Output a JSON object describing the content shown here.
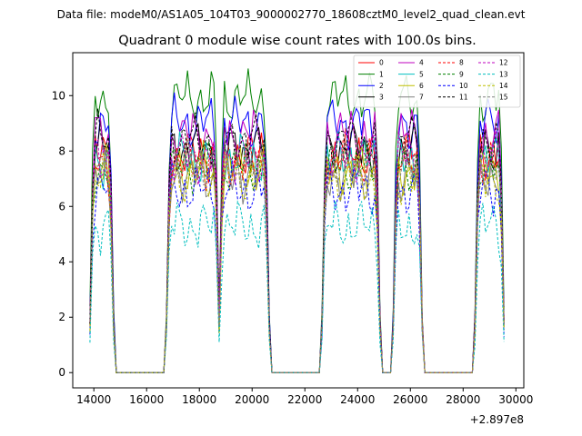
{
  "figure": {
    "suptitle": "Data file: modeM0/AS1A05_104T03_9000002770_18608cztM0_level2_quad_clean.evt",
    "title": "Quadrant 0 module wise count rates with 100.0s bins.",
    "x_offset_label": "+2.897e8"
  },
  "chart_data": {
    "type": "line",
    "title": "Quadrant 0 module wise count rates with 100.0s bins.",
    "xlabel": "",
    "ylabel": "",
    "x_offset": 289700000,
    "xlim": [
      13200,
      30300
    ],
    "ylim": [
      -0.55,
      11.55
    ],
    "x_ticks": [
      14000,
      16000,
      18000,
      20000,
      22000,
      24000,
      26000,
      28000,
      30000
    ],
    "x_tick_labels": [
      "14000",
      "16000",
      "18000",
      "20000",
      "22000",
      "24000",
      "26000",
      "28000",
      "30000"
    ],
    "y_ticks": [
      0,
      2,
      4,
      6,
      8,
      10
    ],
    "y_tick_labels": [
      "0",
      "2",
      "4",
      "6",
      "8",
      "10"
    ],
    "grid": false,
    "legend_position": "top-right",
    "legend_columns": 4,
    "bin_seconds": 100,
    "segments": [
      {
        "start": 13850,
        "end": 14750
      },
      {
        "start": 16750,
        "end": 18750
      },
      {
        "start": 18750,
        "end": 20650
      },
      {
        "start": 22600,
        "end": 24900
      },
      {
        "start": 25350,
        "end": 26450
      },
      {
        "start": 28450,
        "end": 29550
      }
    ],
    "series": [
      {
        "name": "0",
        "color": "#ff0000",
        "dash": "solid",
        "level": 7.9
      },
      {
        "name": "1",
        "color": "#008000",
        "dash": "solid",
        "level": 9.9
      },
      {
        "name": "2",
        "color": "#0000ff",
        "dash": "solid",
        "level": 9.0
      },
      {
        "name": "3",
        "color": "#000000",
        "dash": "solid",
        "level": 8.1
      },
      {
        "name": "4",
        "color": "#bf00bf",
        "dash": "solid",
        "level": 8.6
      },
      {
        "name": "5",
        "color": "#00bfbf",
        "dash": "solid",
        "level": 7.7
      },
      {
        "name": "6",
        "color": "#bfbf00",
        "dash": "solid",
        "level": 7.3
      },
      {
        "name": "7",
        "color": "#808080",
        "dash": "solid",
        "level": 7.1
      },
      {
        "name": "8",
        "color": "#ff0000",
        "dash": "dashed",
        "level": 7.6
      },
      {
        "name": "9",
        "color": "#008000",
        "dash": "dashed",
        "level": 7.4
      },
      {
        "name": "10",
        "color": "#0000ff",
        "dash": "dashed",
        "level": 6.6
      },
      {
        "name": "11",
        "color": "#000000",
        "dash": "dashed",
        "level": 8.4
      },
      {
        "name": "12",
        "color": "#bf00bf",
        "dash": "dashed",
        "level": 7.8
      },
      {
        "name": "13",
        "color": "#00bfbf",
        "dash": "dashed",
        "level": 5.3
      },
      {
        "name": "14",
        "color": "#bfbf00",
        "dash": "dashed",
        "level": 7.0
      },
      {
        "name": "15",
        "color": "#808080",
        "dash": "dashed",
        "level": 7.5
      }
    ]
  }
}
